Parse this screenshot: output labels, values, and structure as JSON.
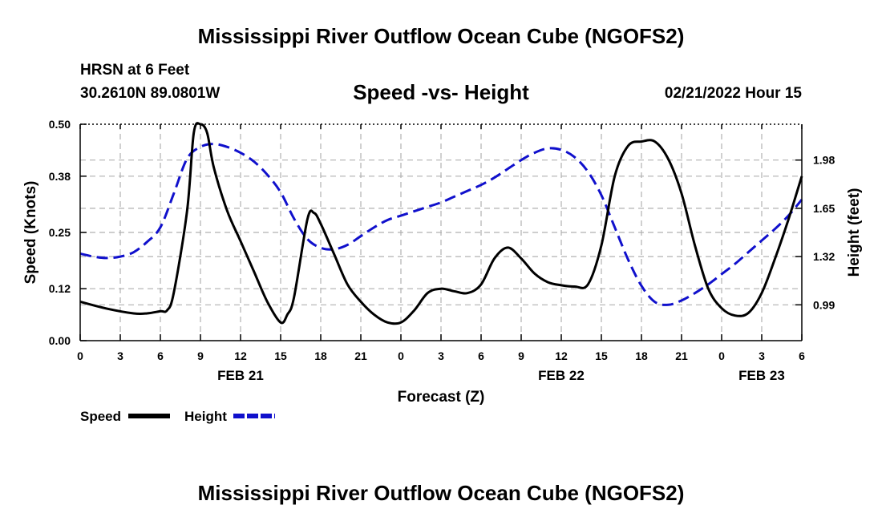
{
  "page": {
    "title": "Mississippi River Outflow Ocean Cube (NGOFS2)",
    "title_repeat": "Mississippi River Outflow Ocean Cube (NGOFS2)",
    "station": "HRSN at 6 Feet",
    "coords": "30.2610N  89.0801W",
    "subtitle": "Speed -vs- Height",
    "datetime": "02/21/2022 Hour 15"
  },
  "colors": {
    "speed": "#000000",
    "height": "#1010cc",
    "grid": "#b0b0b0"
  },
  "chart_data": {
    "type": "line",
    "title": "Speed -vs- Height",
    "xlabel": "Forecast (Z)",
    "ylabel": "Speed (Knots)",
    "y2label": "Height (feet)",
    "x_unit": "hours from 2022-02-21 00Z",
    "xlim": [
      -24,
      30
    ],
    "ylim": [
      0,
      0.5
    ],
    "y2lim": [
      0.745,
      2.225
    ],
    "x_ticks": [
      -24,
      -21,
      -18,
      -15,
      -12,
      -9,
      -6,
      -3,
      0,
      3,
      6,
      9,
      12,
      15,
      18,
      21,
      24,
      27,
      30
    ],
    "x_tick_labels": [
      "0",
      "3",
      "6",
      "9",
      "12",
      "15",
      "18",
      "21",
      "0",
      "3",
      "6",
      "9",
      "12",
      "15",
      "18",
      "21",
      "0",
      "3",
      "6"
    ],
    "date_labels": [
      {
        "x": -12,
        "label": "FEB 21"
      },
      {
        "x": 12,
        "label": "FEB 22"
      },
      {
        "x": 27,
        "label": "FEB 23"
      }
    ],
    "y_ticks": [
      0.0,
      0.12,
      0.25,
      0.38,
      0.5
    ],
    "y_tick_labels": [
      "0.00",
      "0.12",
      "0.25",
      "0.38",
      "0.50"
    ],
    "y2_ticks": [
      0.99,
      1.32,
      1.65,
      1.98
    ],
    "y2_tick_labels": [
      "0.99",
      "1.32",
      "1.65",
      "1.98"
    ],
    "legend": [
      {
        "name": "Speed",
        "style": "solid"
      },
      {
        "name": "Height",
        "style": "dashed"
      }
    ],
    "series": [
      {
        "name": "Speed",
        "axis": "left",
        "x": [
          -24,
          -22,
          -20,
          -19,
          -18,
          -17.5,
          -17,
          -16,
          -15.5,
          -15,
          -14.5,
          -14,
          -13,
          -12,
          -11,
          -10,
          -9,
          -8.5,
          -8,
          -7,
          -6.5,
          -6,
          -5,
          -4,
          -3,
          -2,
          -1,
          0,
          1,
          2,
          3,
          4,
          5,
          6,
          7,
          8,
          9,
          10,
          11,
          12,
          13,
          14,
          15,
          16,
          17,
          18,
          19,
          20,
          21,
          22,
          23,
          24,
          25,
          26,
          27,
          28,
          29,
          30
        ],
        "values": [
          0.09,
          0.074,
          0.063,
          0.063,
          0.068,
          0.07,
          0.11,
          0.3,
          0.48,
          0.5,
          0.48,
          0.4,
          0.3,
          0.23,
          0.16,
          0.09,
          0.042,
          0.06,
          0.1,
          0.28,
          0.295,
          0.27,
          0.2,
          0.13,
          0.09,
          0.06,
          0.042,
          0.042,
          0.07,
          0.11,
          0.12,
          0.114,
          0.11,
          0.13,
          0.19,
          0.215,
          0.19,
          0.155,
          0.135,
          0.128,
          0.125,
          0.13,
          0.22,
          0.38,
          0.45,
          0.46,
          0.46,
          0.42,
          0.34,
          0.22,
          0.12,
          0.075,
          0.058,
          0.064,
          0.11,
          0.19,
          0.28,
          0.38
        ]
      },
      {
        "name": "Height",
        "axis": "right",
        "x": [
          -24,
          -23,
          -22,
          -21,
          -20,
          -19,
          -18,
          -17,
          -16,
          -15,
          -14,
          -13,
          -12,
          -11,
          -10,
          -9,
          -8,
          -7,
          -6,
          -5,
          -4,
          -3,
          -2,
          -1,
          0,
          1,
          2,
          3,
          4,
          5,
          6,
          7,
          8,
          9,
          10,
          11,
          12,
          13,
          14,
          15,
          16,
          17,
          18,
          19,
          20,
          21,
          22,
          23,
          24,
          25,
          26,
          27,
          28,
          29,
          30
        ],
        "values": [
          1.34,
          1.32,
          1.31,
          1.32,
          1.35,
          1.42,
          1.52,
          1.75,
          1.99,
          2.07,
          2.09,
          2.07,
          2.03,
          1.97,
          1.88,
          1.76,
          1.58,
          1.44,
          1.38,
          1.37,
          1.4,
          1.46,
          1.52,
          1.57,
          1.6,
          1.63,
          1.66,
          1.69,
          1.73,
          1.77,
          1.81,
          1.86,
          1.92,
          1.98,
          2.03,
          2.06,
          2.05,
          2.0,
          1.9,
          1.74,
          1.52,
          1.3,
          1.12,
          1.01,
          0.99,
          1.02,
          1.07,
          1.13,
          1.2,
          1.27,
          1.35,
          1.43,
          1.51,
          1.6,
          1.71
        ]
      }
    ]
  }
}
